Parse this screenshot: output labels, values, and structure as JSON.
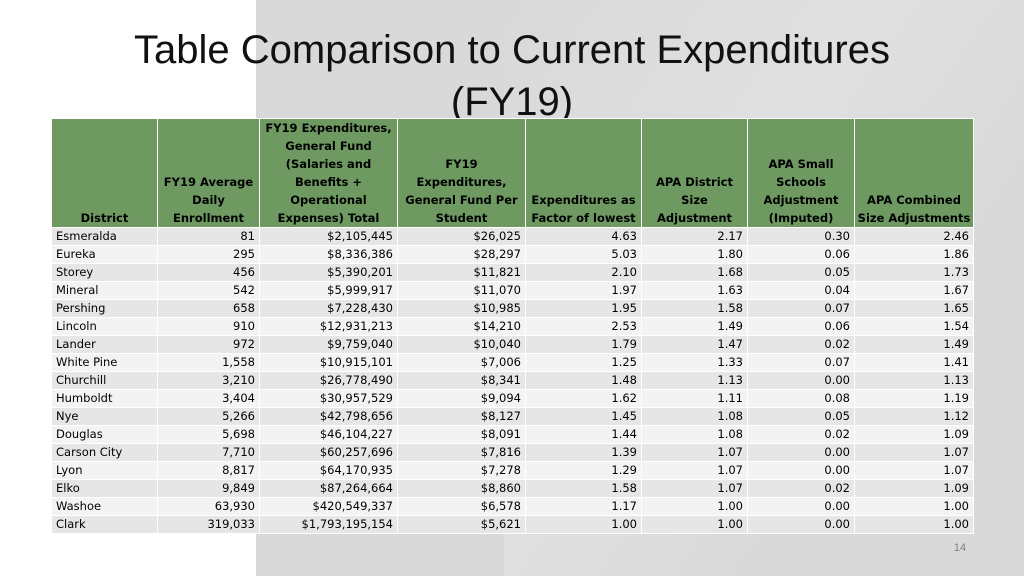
{
  "slide": {
    "title_line1": "Table Comparison to Current Expenditures",
    "title_line2": "(FY19)",
    "page_number": "14"
  },
  "table": {
    "headers": [
      "District",
      "FY19 Average Daily Enrollment",
      "FY19 Expenditures, General Fund (Salaries and Benefits + Operational Expenses) Total",
      "FY19 Expenditures, General Fund Per Student",
      "Expenditures as Factor of lowest",
      "APA District Size Adjustment",
      "APA Small Schools Adjustment (Imputed)",
      "APA Combined Size Adjustments"
    ],
    "rows": [
      [
        "Esmeralda",
        "81",
        "$2,105,445",
        "$26,025",
        "4.63",
        "2.17",
        "0.30",
        "2.46"
      ],
      [
        "Eureka",
        "295",
        "$8,336,386",
        "$28,297",
        "5.03",
        "1.80",
        "0.06",
        "1.86"
      ],
      [
        "Storey",
        "456",
        "$5,390,201",
        "$11,821",
        "2.10",
        "1.68",
        "0.05",
        "1.73"
      ],
      [
        "Mineral",
        "542",
        "$5,999,917",
        "$11,070",
        "1.97",
        "1.63",
        "0.04",
        "1.67"
      ],
      [
        "Pershing",
        "658",
        "$7,228,430",
        "$10,985",
        "1.95",
        "1.58",
        "0.07",
        "1.65"
      ],
      [
        "Lincoln",
        "910",
        "$12,931,213",
        "$14,210",
        "2.53",
        "1.49",
        "0.06",
        "1.54"
      ],
      [
        "Lander",
        "972",
        "$9,759,040",
        "$10,040",
        "1.79",
        "1.47",
        "0.02",
        "1.49"
      ],
      [
        "White Pine",
        "1,558",
        "$10,915,101",
        "$7,006",
        "1.25",
        "1.33",
        "0.07",
        "1.41"
      ],
      [
        "Churchill",
        "3,210",
        "$26,778,490",
        "$8,341",
        "1.48",
        "1.13",
        "0.00",
        "1.13"
      ],
      [
        "Humboldt",
        "3,404",
        "$30,957,529",
        "$9,094",
        "1.62",
        "1.11",
        "0.08",
        "1.19"
      ],
      [
        "Nye",
        "5,266",
        "$42,798,656",
        "$8,127",
        "1.45",
        "1.08",
        "0.05",
        "1.12"
      ],
      [
        "Douglas",
        "5,698",
        "$46,104,227",
        "$8,091",
        "1.44",
        "1.08",
        "0.02",
        "1.09"
      ],
      [
        "Carson City",
        "7,710",
        "$60,257,696",
        "$7,816",
        "1.39",
        "1.07",
        "0.00",
        "1.07"
      ],
      [
        "Lyon",
        "8,817",
        "$64,170,935",
        "$7,278",
        "1.29",
        "1.07",
        "0.00",
        "1.07"
      ],
      [
        "Elko",
        "9,849",
        "$87,264,664",
        "$8,860",
        "1.58",
        "1.07",
        "0.02",
        "1.09"
      ],
      [
        "Washoe",
        "63,930",
        "$420,549,337",
        "$6,578",
        "1.17",
        "1.00",
        "0.00",
        "1.00"
      ],
      [
        "Clark",
        "319,033",
        "$1,793,195,154",
        "$5,621",
        "1.00",
        "1.00",
        "0.00",
        "1.00"
      ]
    ]
  },
  "colors": {
    "header_green": "#6e9a62",
    "row_odd": "#e6e6e6",
    "row_even": "#f3f3f3",
    "background_panel": "#d9d9d9"
  }
}
